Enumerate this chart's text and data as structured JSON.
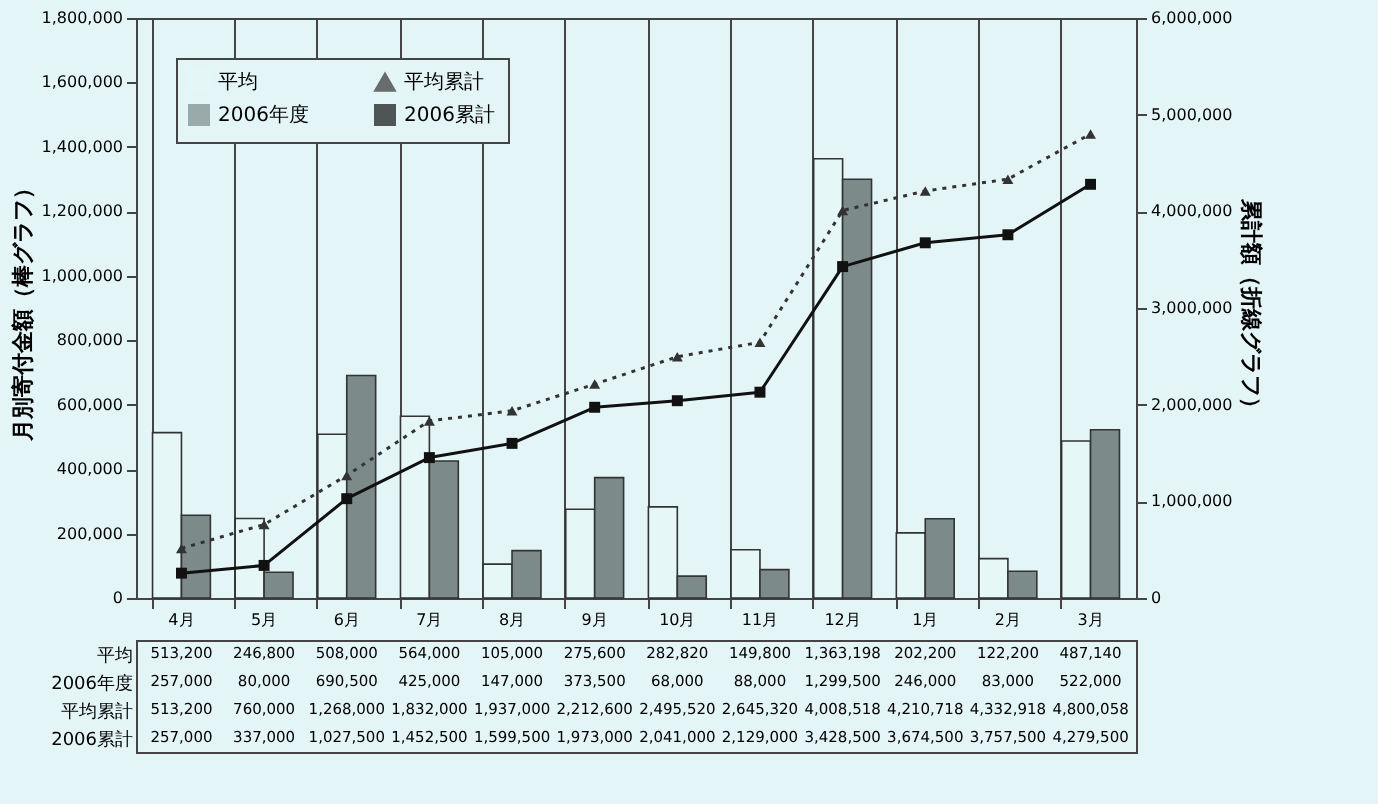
{
  "chart_data": {
    "type": "bar",
    "ylabel": "月別寄付金額（棒グラフ）",
    "y2label": "累計額（折線グラフ）",
    "categories": [
      "4月",
      "5月",
      "6月",
      "7月",
      "8月",
      "9月",
      "10月",
      "11月",
      "12月",
      "1月",
      "2月",
      "3月"
    ],
    "series": [
      {
        "name": "平均",
        "color": "#e6f7f7",
        "values": [
          513200,
          246800,
          508000,
          564000,
          105000,
          275600,
          282820,
          149800,
          1363198,
          202200,
          122200,
          487140
        ],
        "value_labels": [
          "513,200",
          "246,800",
          "508,000",
          "564,000",
          "105,000",
          "275,600",
          "282,820",
          "149,800",
          "1,363,198",
          "202,200",
          "122,200",
          "487,140"
        ]
      },
      {
        "name": "2006年度",
        "color": "#7c8a8a",
        "values": [
          257000,
          80000,
          690500,
          425000,
          147000,
          373500,
          68000,
          88000,
          1299500,
          246000,
          83000,
          522000
        ],
        "value_labels": [
          "257,000",
          "80,000",
          "690,500",
          "425,000",
          "147,000",
          "373,500",
          "68,000",
          "88,000",
          "1,299,500",
          "246,000",
          "83,000",
          "522,000"
        ]
      },
      {
        "name": "平均累計",
        "type": "line",
        "axis": "y2",
        "color": "#333333",
        "marker": "triangle",
        "line_style": "dotted",
        "values": [
          513200,
          760000,
          1268000,
          1832000,
          1937000,
          2212600,
          2495520,
          2645320,
          4008518,
          4210718,
          4332918,
          4800058
        ],
        "value_labels": [
          "513,200",
          "760,000",
          "1,268,000",
          "1,832,000",
          "1,937,000",
          "2,212,600",
          "2,495,520",
          "2,645,320",
          "4,008,518",
          "4,210,718",
          "4,332,918",
          "4,800,058"
        ]
      },
      {
        "name": "2006累計",
        "type": "line",
        "axis": "y2",
        "color": "#111111",
        "marker": "square",
        "line_style": "solid",
        "values": [
          257000,
          337000,
          1027500,
          1452500,
          1599500,
          1973000,
          2041000,
          2129000,
          3428500,
          3674500,
          3757500,
          4279500
        ],
        "value_labels": [
          "257,000",
          "337,000",
          "1,027,500",
          "1,452,500",
          "1,599,500",
          "1,973,000",
          "2,041,000",
          "2,129,000",
          "3,428,500",
          "3,674,500",
          "3,757,500",
          "4,279,500"
        ]
      }
    ],
    "ylim": [
      0,
      1800000
    ],
    "yticks": [
      {
        "value": 0,
        "label": "0"
      },
      {
        "value": 200000,
        "label": "200,000"
      },
      {
        "value": 400000,
        "label": "400,000"
      },
      {
        "value": 600000,
        "label": "600,000"
      },
      {
        "value": 800000,
        "label": "800,000"
      },
      {
        "value": 1000000,
        "label": "1,000,000"
      },
      {
        "value": 1200000,
        "label": "1,200,000"
      },
      {
        "value": 1400000,
        "label": "1,400,000"
      },
      {
        "value": 1600000,
        "label": "1,600,000"
      },
      {
        "value": 1800000,
        "label": "1,800,000"
      }
    ],
    "y2lim": [
      0,
      6000000
    ],
    "y2ticks": [
      {
        "value": 0,
        "label": "0"
      },
      {
        "value": 1000000,
        "label": "1,000,000"
      },
      {
        "value": 2000000,
        "label": "2,000,000"
      },
      {
        "value": 3000000,
        "label": "3,000,000"
      },
      {
        "value": 4000000,
        "label": "4,000,000"
      },
      {
        "value": 5000000,
        "label": "5,000,000"
      },
      {
        "value": 6000000,
        "label": "6,000,000"
      }
    ],
    "grid": "x",
    "legend": "top left"
  }
}
